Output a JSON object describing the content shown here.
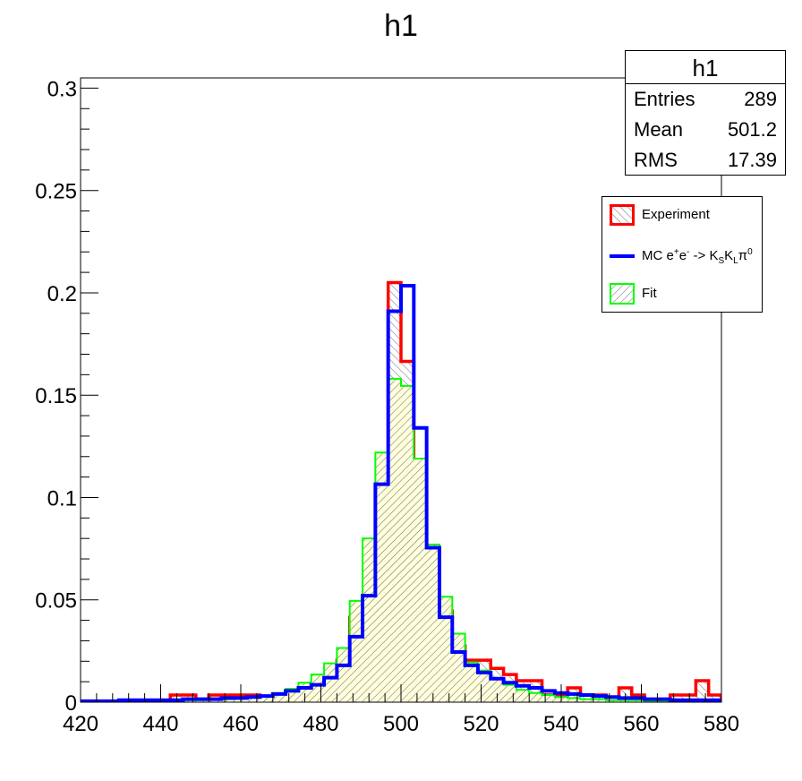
{
  "chart_data": {
    "type": "histogram",
    "title": "h1",
    "xlim": [
      420,
      580
    ],
    "ylim": [
      0,
      0.305
    ],
    "bin_width": 3.2,
    "x_ticks": [
      420,
      440,
      460,
      480,
      500,
      520,
      540,
      560,
      580
    ],
    "y_ticks": [
      0,
      0.05,
      0.1,
      0.15,
      0.2,
      0.25,
      0.3
    ],
    "y_tick_labels": [
      "0",
      "0.05",
      "0.1",
      "0.15",
      "0.2",
      "0.25",
      "0.3"
    ],
    "bin_edges": [
      420,
      423.2,
      426.4,
      429.6,
      432.8,
      436,
      439.2,
      442.4,
      445.6,
      448.8,
      452,
      455.2,
      458.4,
      461.6,
      464.8,
      468,
      471.2,
      474.4,
      477.6,
      480.8,
      484,
      487.2,
      490.4,
      493.6,
      496.8,
      500,
      503.2,
      506.4,
      509.6,
      512.8,
      516,
      519.2,
      522.4,
      525.6,
      528.8,
      532,
      535.2,
      538.4,
      541.6,
      544.8,
      548,
      551.2,
      554.4,
      557.6,
      560.8,
      564,
      567.2,
      570.4,
      573.6,
      576.8,
      580
    ],
    "series": [
      {
        "name": "Experiment",
        "color": "#ff0000",
        "hatch": "diagonal-back",
        "values": [
          0,
          0,
          0,
          0,
          0.0005,
          0,
          0,
          0.0035,
          0.0035,
          0,
          0.0035,
          0.0035,
          0.0035,
          0.0035,
          0.0005,
          0.0005,
          0.0035,
          0.0065,
          0.0065,
          0.0105,
          0.0205,
          0.0415,
          0.0445,
          0.083,
          0.205,
          0.1665,
          0.1045,
          0.07,
          0.0445,
          0.0275,
          0.0205,
          0.0205,
          0.0165,
          0.0135,
          0.0105,
          0.0105,
          0.0035,
          0.0035,
          0.007,
          0.0035,
          0.0035,
          0,
          0.007,
          0.0035,
          0,
          0,
          0.0035,
          0.0035,
          0.0105,
          0.0035
        ]
      },
      {
        "name": "MC e+e- -> KSKLπ0",
        "color": "#0000ff",
        "hatch": "none",
        "values": [
          0.0005,
          0.0005,
          0.0005,
          0.001,
          0.001,
          0.001,
          0.001,
          0.001,
          0.0015,
          0.0015,
          0.0015,
          0.002,
          0.002,
          0.0025,
          0.003,
          0.004,
          0.0055,
          0.007,
          0.0085,
          0.012,
          0.018,
          0.032,
          0.052,
          0.1065,
          0.191,
          0.2035,
          0.134,
          0.0755,
          0.0415,
          0.0245,
          0.018,
          0.0145,
          0.0115,
          0.0095,
          0.008,
          0.007,
          0.0055,
          0.0045,
          0.004,
          0.0035,
          0.003,
          0.0025,
          0.002,
          0.002,
          0.0015,
          0.0015,
          0.001,
          0.001,
          0.001,
          0.001
        ]
      },
      {
        "name": "Fit",
        "color": "#00ff00",
        "hatch": "diagonal",
        "values": [
          0.0005,
          0.0005,
          0.0005,
          0.0005,
          0.0005,
          0.0005,
          0.001,
          0.001,
          0.001,
          0.001,
          0.0015,
          0.0015,
          0.002,
          0.0025,
          0.003,
          0.0045,
          0.0065,
          0.0095,
          0.0135,
          0.019,
          0.0265,
          0.0495,
          0.08,
          0.122,
          0.158,
          0.1545,
          0.119,
          0.077,
          0.0515,
          0.0335,
          0.0195,
          0.0155,
          0.0115,
          0.0085,
          0.006,
          0.0045,
          0.0035,
          0.0025,
          0.002,
          0.0015,
          0.0015,
          0.001,
          0.001,
          0.001,
          0.0005,
          0.0005,
          0.0005,
          0.0005,
          0.0005,
          0.0005
        ]
      }
    ],
    "stats": {
      "title": "h1",
      "rows": [
        {
          "label": "Entries",
          "value": "289"
        },
        {
          "label": "Mean",
          "value": "501.2"
        },
        {
          "label": "RMS",
          "value": "17.39"
        }
      ]
    },
    "legend": {
      "placement": "top-right",
      "entries": [
        {
          "label": "Experiment"
        },
        {
          "label_main": "MC e",
          "sup1": "+",
          "mid1": "e",
          "sup2": "-",
          "mid2": " -> K",
          "sub1": "S",
          "mid3": "K",
          "sub2": "L",
          "mid4": "π",
          "sup3": "0"
        },
        {
          "label": "Fit"
        }
      ]
    }
  }
}
